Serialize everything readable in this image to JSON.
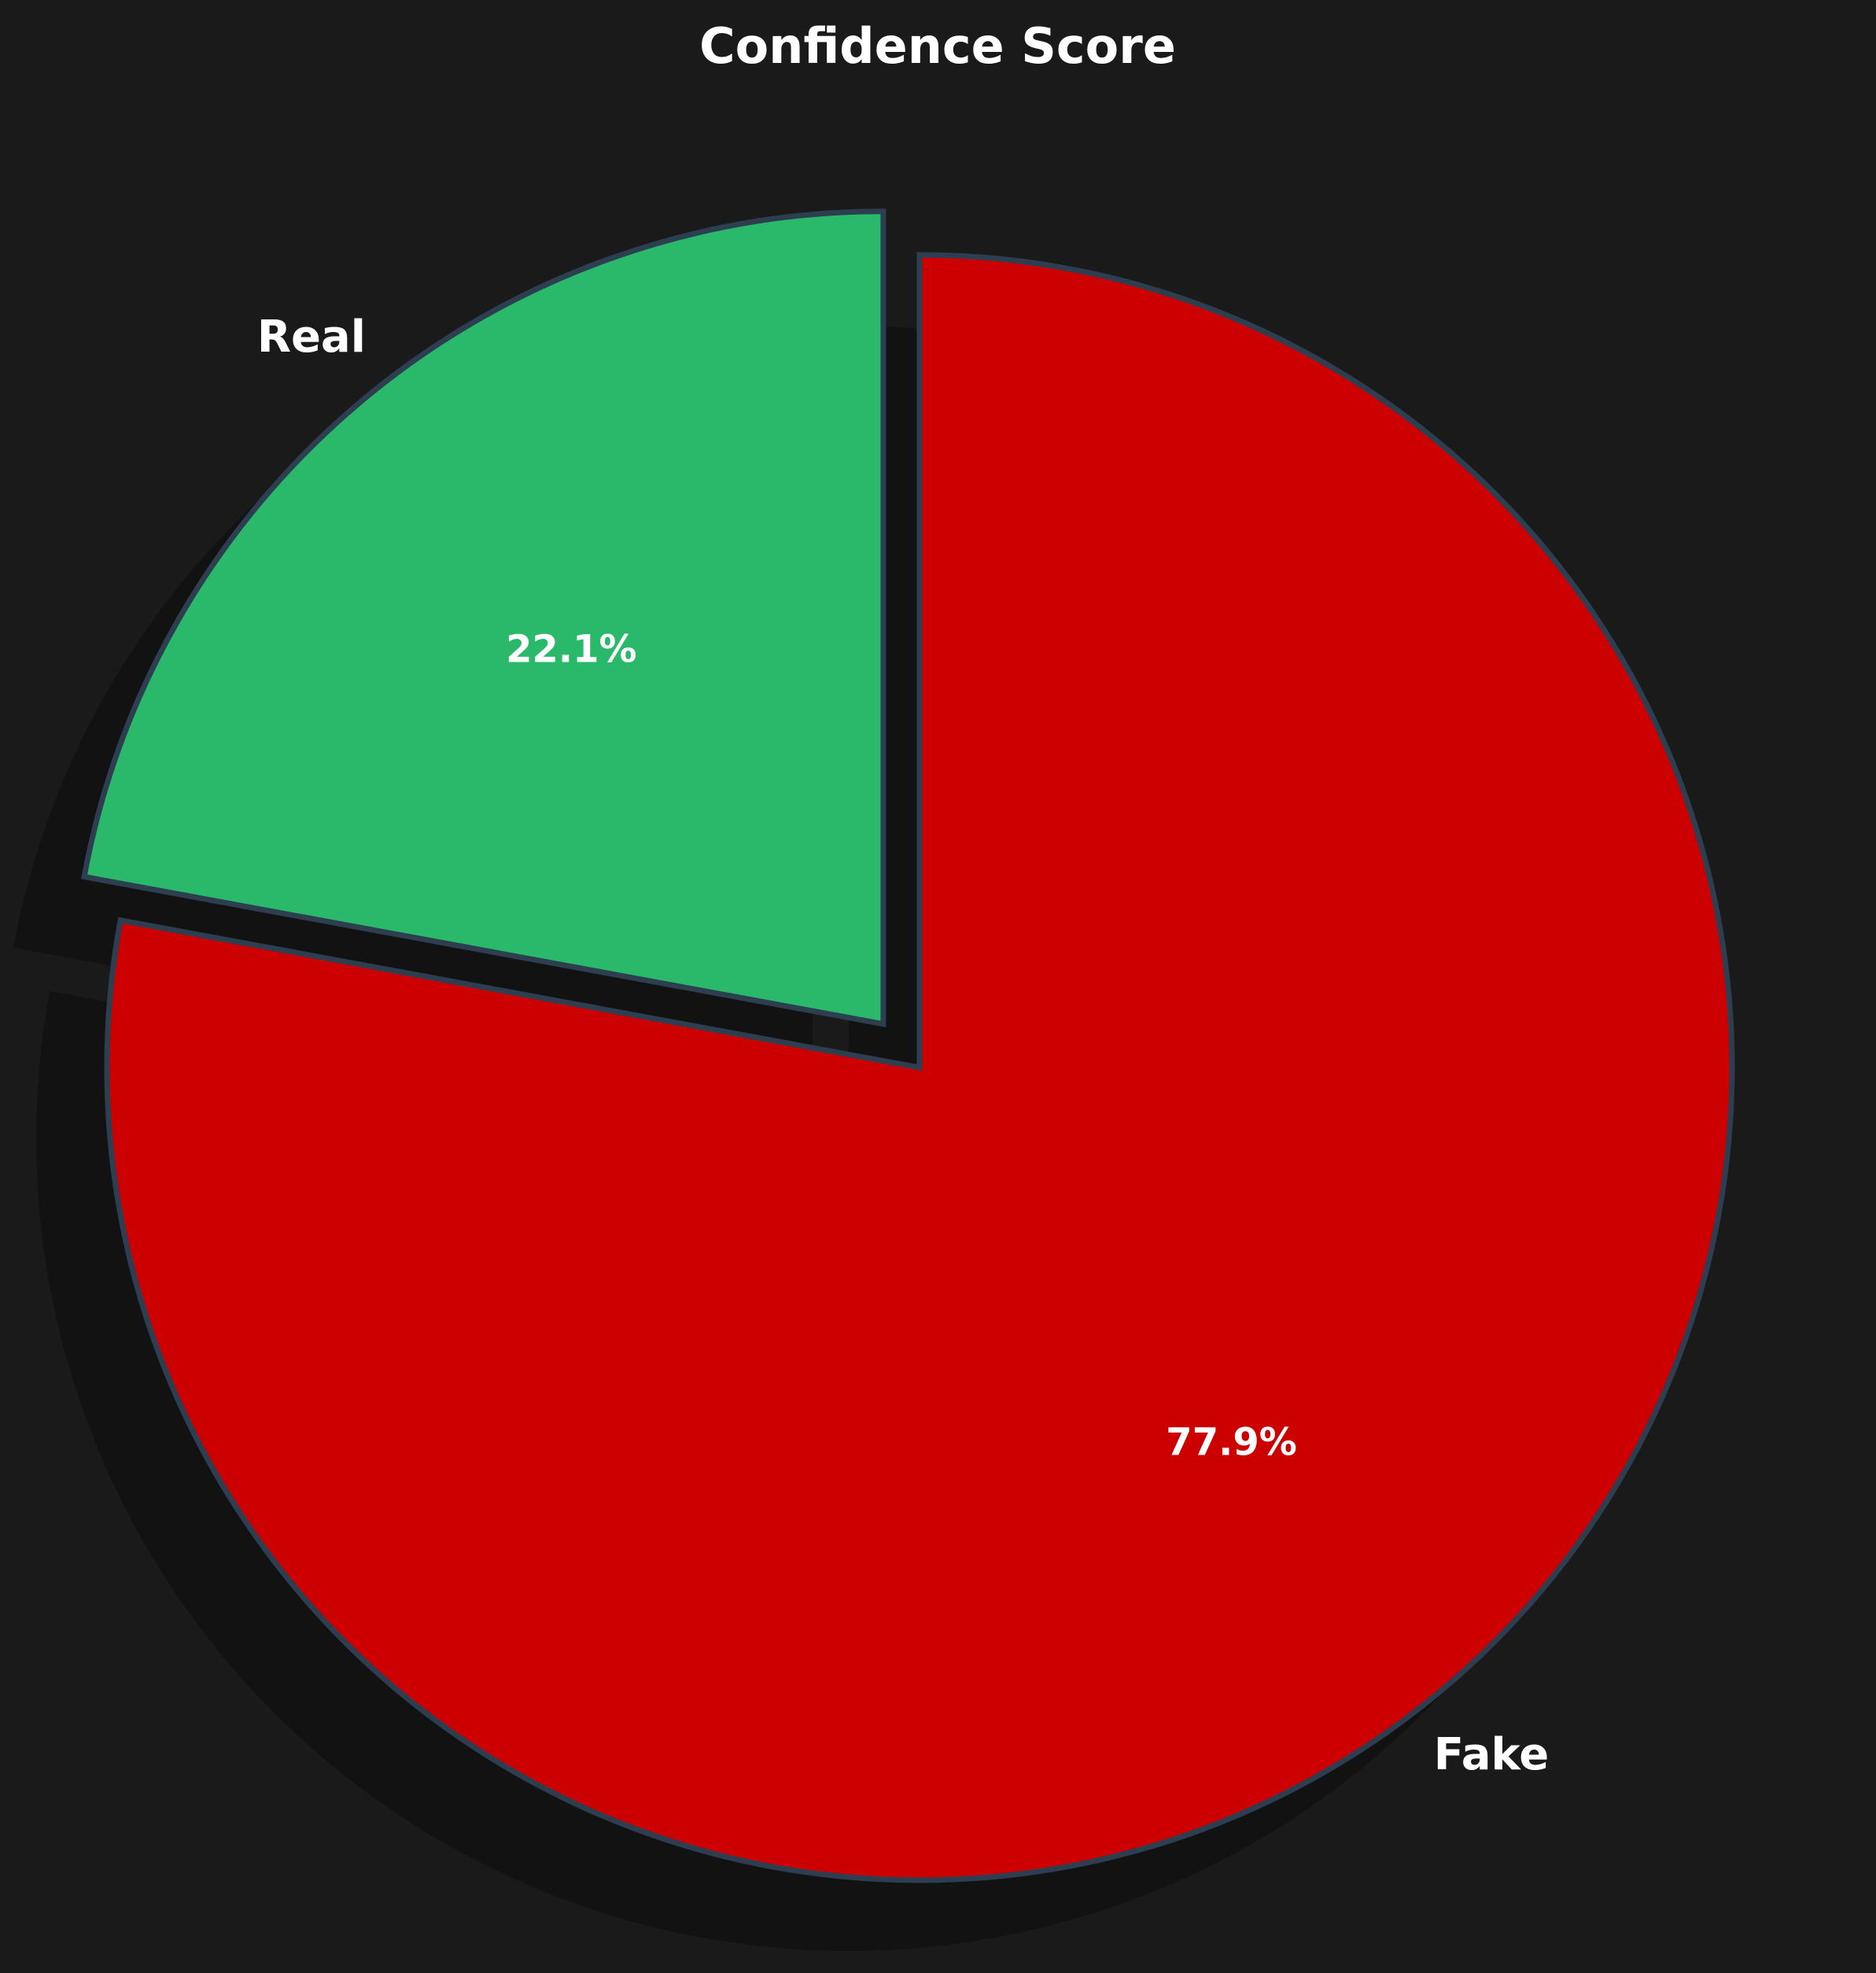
{
  "chart_data": {
    "type": "pie",
    "title": "Confidence Score",
    "categories": [
      "Fake",
      "Real"
    ],
    "values": [
      77.9,
      22.1
    ],
    "value_labels": [
      "77.9%",
      "22.1%"
    ],
    "colors": [
      "#cc0000",
      "#2ab96a"
    ],
    "edge_color": "#2c3e50",
    "background": "#1a1a1a",
    "start_angle_deg": 90,
    "direction": "clockwise",
    "exploded": [
      "Real"
    ],
    "shadow": true
  }
}
